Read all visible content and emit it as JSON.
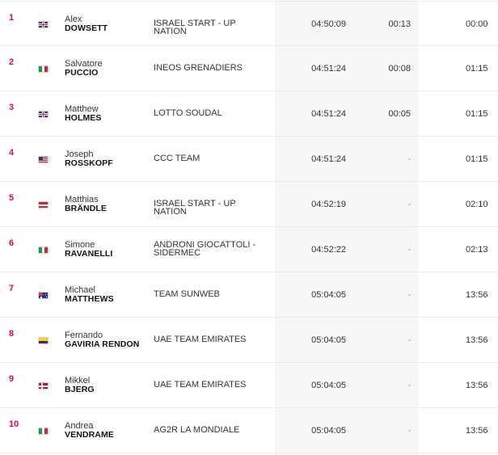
{
  "rows": [
    {
      "rank": "1",
      "country": "gb-flag-icon",
      "first": "Alex",
      "last": "DOWSETT",
      "team": "ISRAEL START - UP NATION",
      "time": "04:50:09",
      "bonus": "00:13",
      "gap": "00:00"
    },
    {
      "rank": "2",
      "country": "it-flag-icon",
      "first": "Salvatore",
      "last": "PUCCIO",
      "team": "INEOS GRENADIERS",
      "time": "04:51:24",
      "bonus": "00:08",
      "gap": "01:15"
    },
    {
      "rank": "3",
      "country": "gb-flag-icon",
      "first": "Matthew",
      "last": "HOLMES",
      "team": "LOTTO SOUDAL",
      "time": "04:51:24",
      "bonus": "00:05",
      "gap": "01:15"
    },
    {
      "rank": "4",
      "country": "us-flag-icon",
      "first": "Joseph",
      "last": "ROSSKOPF",
      "team": "CCC TEAM",
      "time": "04:51:24",
      "bonus": "-",
      "gap": "01:15"
    },
    {
      "rank": "5",
      "country": "at-flag-icon",
      "first": "Matthias",
      "last": "BRÄNDLE",
      "team": "ISRAEL START - UP NATION",
      "time": "04:52:19",
      "bonus": "-",
      "gap": "02:10"
    },
    {
      "rank": "6",
      "country": "it-flag-icon",
      "first": "Simone",
      "last": "RAVANELLI",
      "team_line1": "ANDRONI GIOCATTOLI -",
      "team_line2": "SIDERMEC",
      "time": "04:52:22",
      "bonus": "-",
      "gap": "02:13"
    },
    {
      "rank": "7",
      "country": "au-flag-icon",
      "first": "Michael",
      "last": "MATTHEWS",
      "team": "TEAM SUNWEB",
      "time": "05:04:05",
      "bonus": "-",
      "gap": "13:56"
    },
    {
      "rank": "8",
      "country": "co-flag-icon",
      "first": "Fernando",
      "last": "GAVIRIA RENDON",
      "team": "UAE TEAM EMIRATES",
      "time": "05:04:05",
      "bonus": "-",
      "gap": "13:56"
    },
    {
      "rank": "9",
      "country": "dk-flag-icon",
      "first": "Mikkel",
      "last": "BJERG",
      "team": "UAE TEAM EMIRATES",
      "time": "05:04:05",
      "bonus": "-",
      "gap": "13:56"
    },
    {
      "rank": "10",
      "country": "it-flag-icon",
      "first": "Andrea",
      "last": "VENDRAME",
      "team": "AG2R LA MONDIALE",
      "time": "05:04:05",
      "bonus": "-",
      "gap": "13:56"
    }
  ],
  "colors": {
    "rank": "#e6005c",
    "shaded_column": "#f6f6f6",
    "row_border": "#ececec"
  }
}
